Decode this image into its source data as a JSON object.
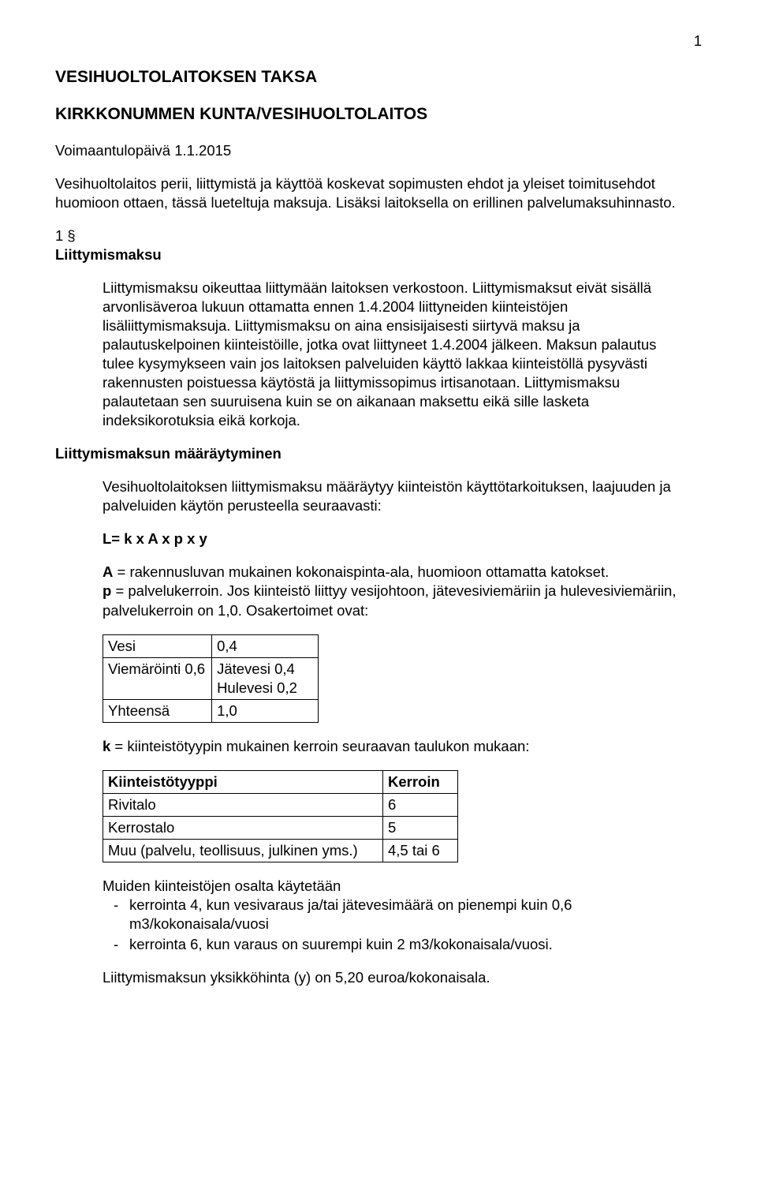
{
  "pageNumber": "1",
  "title": "VESIHUOLTOLAITOKSEN TAKSA",
  "subtitle": "KIRKKONUMMEN KUNTA/VESIHUOLTOLAITOS",
  "effectiveLine": "Voimaantulopäivä 1.1.2015",
  "intro": "Vesihuoltolaitos perii, liittymistä ja käyttöä koskevat sopimusten ehdot ja yleiset toimitusehdot huomioon ottaen, tässä lueteltuja maksuja. Lisäksi laitoksella on erillinen palvelumaksuhinnasto.",
  "section1": {
    "num": "1 §",
    "heading": "Liittymismaksu",
    "body": "Liittymismaksu oikeuttaa liittymään laitoksen verkostoon. Liittymismaksut eivät sisällä arvonlisäveroa lukuun ottamatta ennen 1.4.2004 liittyneiden kiinteistöjen lisäliittymismaksuja. Liittymismaksu on aina ensisijaisesti siirtyvä maksu ja palautuskelpoinen kiinteistöille, jotka ovat liittyneet 1.4.2004 jälkeen. Maksun palautus tulee kysymykseen vain jos laitoksen palveluiden käyttö lakkaa kiinteistöllä pysyvästi rakennusten poistuessa käytöstä ja liittymissopimus irtisanotaan. Liittymismaksu palautetaan sen suuruisena kuin se on aikanaan maksettu eikä sille lasketa indeksikorotuksia eikä korkoja."
  },
  "determination": {
    "heading": "Liittymismaksun määräytyminen",
    "intro": "Vesihuoltolaitoksen liittymismaksu määräytyy kiinteistön käyttötarkoituksen, laajuuden ja palveluiden käytön perusteella seuraavasti:",
    "formulaLabel": "L= k x A x p x y",
    "a_b": "A",
    "a_text": " = rakennusluvan mukainen kokonaispinta-ala, huomioon ottamatta katokset.",
    "p_b": "p",
    "p_text_1": " = palvelukerroin",
    "p_dot": ".",
    "p_text_2": " Jos kiinteistö liittyy vesijohtoon, jätevesiviemäriin ja hulevesiviemäriin, palvelukerroin on 1,0. Osakertoimet ovat:",
    "osak": {
      "rows": [
        [
          "Vesi",
          "0,4"
        ],
        [
          "Viemäröinti 0,6",
          "Jätevesi 0,4\nHulevesi 0,2"
        ],
        [
          "Yhteensä",
          "1,0"
        ]
      ]
    },
    "k_b": "k",
    "k_text": " = kiinteistötyypin mukainen kerroin seuraavan taulukon mukaan:",
    "kerroin": {
      "headers": [
        "Kiinteistötyyppi",
        "Kerroin"
      ],
      "rows": [
        [
          "Rivitalo",
          "6"
        ],
        [
          "Kerrostalo",
          "5"
        ],
        [
          "Muu (palvelu, teollisuus, julkinen yms.)",
          "4,5 tai 6"
        ]
      ]
    },
    "muiden": "Muiden kiinteistöjen osalta käytetään",
    "bullets": [
      "kerrointa 4, kun vesivaraus ja/tai jätevesimäärä on pienempi kuin 0,6 m3/kokonaisala/vuosi",
      "kerrointa 6, kun varaus on suurempi kuin 2 m3/kokonaisala/vuosi."
    ],
    "unitprice": "Liittymismaksun yksikköhinta (y) on 5,20 euroa/kokonaisala."
  }
}
